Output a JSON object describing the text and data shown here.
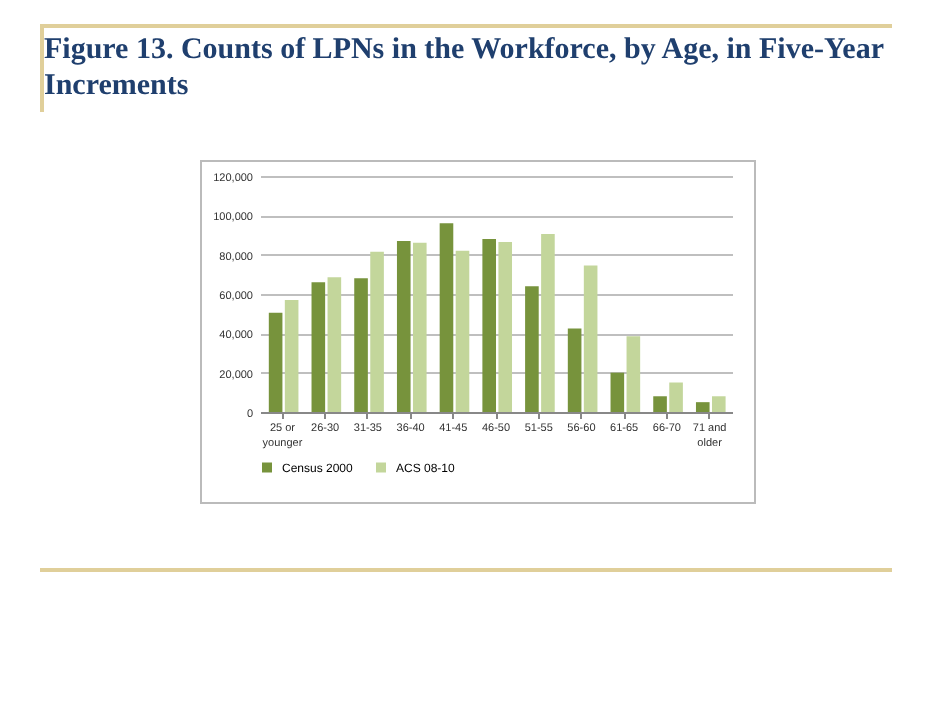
{
  "chart_data": {
    "type": "bar",
    "title": "Figure 13. Counts of LPNs in the Workforce, by Age, in Five-Year Increments",
    "categories": [
      "25 or younger",
      "26-30",
      "31-35",
      "36-40",
      "41-45",
      "46-50",
      "51-55",
      "56-60",
      "61-65",
      "66-70",
      "71 and older"
    ],
    "series": [
      {
        "name": "Census 2000",
        "color": "#77933c",
        "values": [
          50500,
          66000,
          68000,
          87000,
          96000,
          88000,
          64000,
          42500,
          20000,
          8000,
          5000
        ]
      },
      {
        "name": "ACS 08-10",
        "color": "#c3d69b",
        "values": [
          57000,
          68500,
          81500,
          86000,
          82000,
          86500,
          90500,
          74500,
          38500,
          15000,
          8000
        ]
      }
    ],
    "ylim": [
      0,
      120000
    ],
    "yticks": [
      {
        "value": 0,
        "label": "0"
      },
      {
        "value": 20000,
        "label": "20,000"
      },
      {
        "value": 40000,
        "label": "40,000"
      },
      {
        "value": 60000,
        "label": "60,000"
      },
      {
        "value": 80000,
        "label": "80,000"
      },
      {
        "value": 100000,
        "label": "100,000"
      },
      {
        "value": 120000,
        "label": "120,000"
      }
    ],
    "grid": "y",
    "legend": "bottom"
  }
}
